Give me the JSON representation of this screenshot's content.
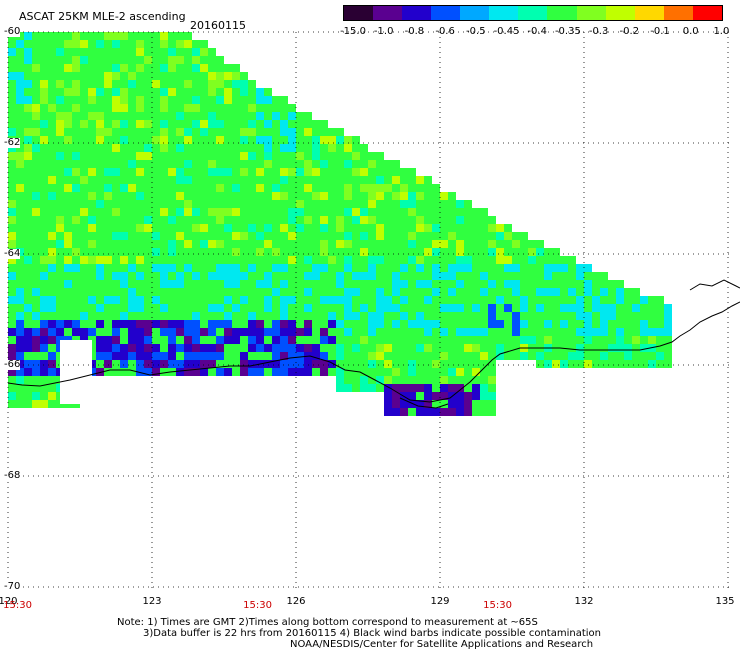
{
  "title": "ASCAT 25KM MLE-2 ascending",
  "date": "20160115",
  "colorbar": {
    "labels": [
      "-15.0",
      "-1.0",
      "-0.8",
      "-0.6",
      "-0.5",
      "-0.45",
      "-0.4",
      "-0.35",
      "-0.3",
      "-0.2",
      "-0.1",
      "0.0",
      "1.0"
    ],
    "colors": [
      "#2a0033",
      "#5a0090",
      "#2200cc",
      "#0050ff",
      "#00a8ff",
      "#00e8f0",
      "#00ffb0",
      "#30ff40",
      "#80ff20",
      "#c0ff00",
      "#ffd800",
      "#ff7000",
      "#ff0000"
    ]
  },
  "axes": {
    "lat_labels": [
      "-60",
      "-62",
      "-64",
      "-66",
      "-68",
      "-70"
    ],
    "lat_values": [
      -60,
      -62,
      -64,
      -66,
      -68,
      -70
    ],
    "lon_labels": [
      "120",
      "123",
      "126",
      "129",
      "132",
      "135"
    ],
    "lon_values": [
      120,
      123,
      126,
      129,
      132,
      135
    ]
  },
  "times": [
    "15:30",
    "15:30",
    "15:30"
  ],
  "times_lon": [
    120.2,
    125.2,
    130.2
  ],
  "notes": [
    "Note: 1) Times are GMT 2)Times along bottom correspond to measurement at ~65S",
    "3)Data buffer is 22 hrs from 20160115 4) Black wind barbs indicate possible contamination",
    "NOAA/NESDIS/Center for Satellite Applications and Research"
  ]
}
